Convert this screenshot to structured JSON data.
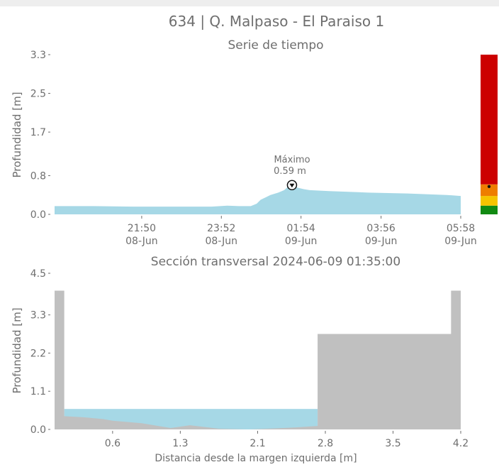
{
  "title": "634 | Q. Malpaso - El Paraiso 1",
  "colors": {
    "text": "#6e6e6e",
    "water": "#a6d8e6",
    "ground": "#c0c0c0",
    "level_red": "#cc0000",
    "level_orange": "#ee7d00",
    "level_yellow": "#f5c400",
    "level_green": "#118a12"
  },
  "chart_data": [
    {
      "type": "area",
      "title": "Serie de tiempo",
      "xlabel": "",
      "ylabel": "Profundidad [m]",
      "x_ticks": [
        {
          "time": "21:50",
          "date": "08-Jun",
          "t": 2.22
        },
        {
          "time": "23:52",
          "date": "08-Jun",
          "t": 4.25
        },
        {
          "time": "01:54",
          "date": "09-Jun",
          "t": 6.28
        },
        {
          "time": "03:56",
          "date": "09-Jun",
          "t": 8.32
        },
        {
          "time": "05:58",
          "date": "09-Jun",
          "t": 10.35
        }
      ],
      "xlim_hours": [
        0,
        10.35
      ],
      "y_ticks": [
        "0.0",
        "0.8",
        "1.7",
        "2.5",
        "3.3"
      ],
      "ylim": [
        0,
        3.3
      ],
      "x_hours": [
        0,
        1,
        2,
        3,
        4,
        4.4,
        4.7,
        5.0,
        5.15,
        5.25,
        5.4,
        5.5,
        5.7,
        5.85,
        5.95,
        6.05,
        6.2,
        6.35,
        6.5,
        7,
        8,
        9,
        10,
        10.35
      ],
      "values": [
        0.17,
        0.17,
        0.16,
        0.16,
        0.16,
        0.18,
        0.17,
        0.17,
        0.22,
        0.3,
        0.36,
        0.4,
        0.45,
        0.5,
        0.57,
        0.59,
        0.55,
        0.52,
        0.5,
        0.48,
        0.45,
        0.43,
        0.4,
        0.38
      ],
      "annotation": {
        "label_1": "Máximo",
        "label_2": "0.59 m",
        "x": 6.05,
        "y": 0.59
      },
      "level_bar": {
        "segments": [
          {
            "from": 0.0,
            "to": 0.18,
            "color": "#118a12"
          },
          {
            "from": 0.18,
            "to": 0.38,
            "color": "#f5c400"
          },
          {
            "from": 0.38,
            "to": 0.62,
            "color": "#ee7d00"
          },
          {
            "from": 0.62,
            "to": 3.3,
            "color": "#cc0000"
          }
        ],
        "marker_value": 0.59
      }
    },
    {
      "type": "area",
      "title": "Sección transversal 2024-06-09 01:35:00",
      "xlabel": "Distancia desde la margen izquierda [m]",
      "ylabel": "Profundidad [m]",
      "x_ticks": [
        "0.6",
        "1.3",
        "2.1",
        "2.8",
        "3.5",
        "4.2"
      ],
      "y_ticks": [
        "0.0",
        "1.1",
        "2.2",
        "3.3",
        "4.5"
      ],
      "xlim": [
        0,
        4.2
      ],
      "ylim": [
        0,
        4.5
      ],
      "water_level": 0.59,
      "water_extent": [
        0.1,
        2.72
      ],
      "ground_profile": {
        "x": [
          0,
          0.1,
          0.1,
          0.3,
          0.5,
          0.6,
          0.9,
          1.2,
          1.4,
          1.7,
          2.0,
          2.2,
          2.5,
          2.72,
          2.72,
          4.1,
          4.1,
          4.2
        ],
        "y": [
          4.0,
          4.0,
          0.38,
          0.35,
          0.3,
          0.25,
          0.18,
          0.04,
          0.12,
          0.02,
          0.0,
          0.02,
          0.06,
          0.1,
          2.75,
          2.75,
          4.0,
          4.0
        ]
      }
    }
  ]
}
